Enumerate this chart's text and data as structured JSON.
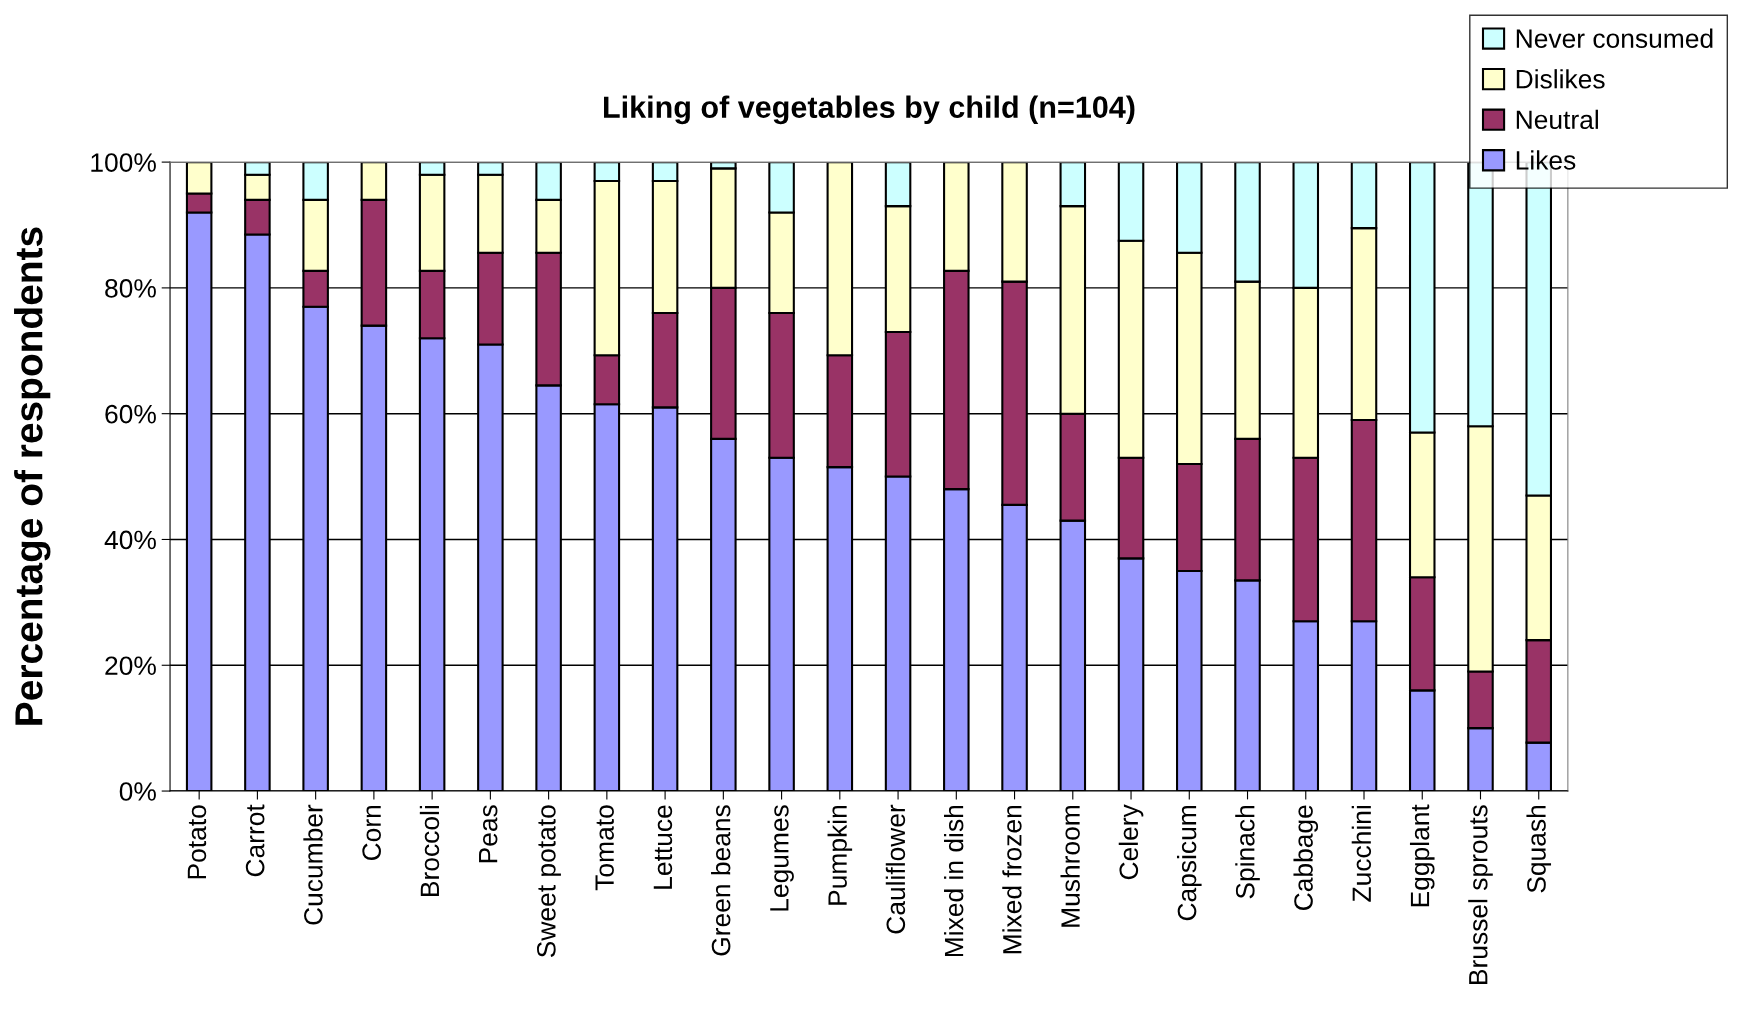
{
  "chart_data": {
    "type": "bar",
    "stacked": true,
    "title": "Liking of vegetables by child (n=104)",
    "ylabel": "Percentage of respondents",
    "categories": [
      "Potato",
      "Carrot",
      "Cucumber",
      "Corn",
      "Broccoli",
      "Peas",
      "Sweet potato",
      "Tomato",
      "Lettuce",
      "Green beans",
      "Legumes",
      "Pumpkin",
      "Cauliflower",
      "Mixed in dish",
      "Mixed frozen",
      "Mushroom",
      "Celery",
      "Capsicum",
      "Spinach",
      "Cabbage",
      "Zucchini",
      "Eggplant",
      "Brussel sprouts",
      "Squash"
    ],
    "series": [
      {
        "name": "Likes",
        "color": "#9999ff",
        "values": [
          92,
          88.5,
          77,
          74,
          72,
          71,
          64.5,
          61.5,
          61,
          56,
          53,
          51.5,
          50,
          48,
          45.5,
          43,
          37,
          35,
          33.5,
          27,
          27,
          16,
          10,
          7.7
        ]
      },
      {
        "name": "Neutral",
        "color": "#993366",
        "values": [
          3,
          5.5,
          5.7,
          20,
          10.7,
          14.6,
          21.1,
          7.8,
          15,
          24,
          23,
          17.8,
          23,
          34.7,
          35.5,
          17,
          16,
          17,
          22.5,
          26,
          32,
          18,
          9,
          16.3
        ]
      },
      {
        "name": "Dislikes",
        "color": "#ffffcc",
        "values": [
          5,
          4,
          11.3,
          6,
          15.3,
          12.4,
          8.4,
          27.7,
          21,
          19,
          16,
          30.7,
          20,
          17.3,
          19,
          33,
          34.5,
          33.6,
          25,
          27,
          30.5,
          23,
          39,
          23
        ]
      },
      {
        "name": "Never consumed",
        "color": "#ccffff",
        "values": [
          0,
          2,
          6,
          0,
          2,
          2,
          6,
          3,
          3,
          1,
          8,
          0,
          7,
          0,
          0,
          7,
          12.5,
          14.4,
          19,
          20,
          10.5,
          43,
          42,
          53
        ]
      }
    ],
    "ylim": [
      0,
      100
    ],
    "yticks": [
      {
        "value": 0,
        "label": "0%"
      },
      {
        "value": 20,
        "label": "20%"
      },
      {
        "value": 40,
        "label": "40%"
      },
      {
        "value": 60,
        "label": "60%"
      },
      {
        "value": 80,
        "label": "80%"
      },
      {
        "value": 100,
        "label": "100%"
      }
    ],
    "grid": "y",
    "legend": "top right"
  }
}
